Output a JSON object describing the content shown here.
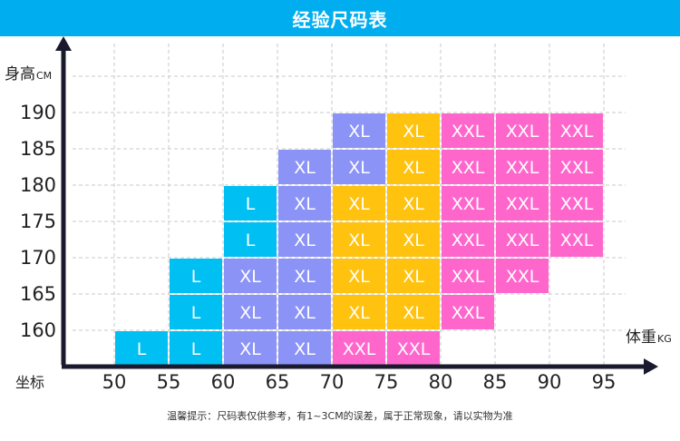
{
  "title": "经验尺码表",
  "footnote": "温馨提示：尺码表仅供参考，有1~3CM的误差，属于正常现象，请以实物为准",
  "chart_data": {
    "type": "heatmap",
    "title": "经验尺码表",
    "ylabel": "身高",
    "ylabel_unit": "CM",
    "xlabel": "体重",
    "xlabel_unit": "KG",
    "origin_label": "坐标",
    "x_ticks": [
      50,
      55,
      60,
      65,
      70,
      75,
      80,
      85,
      90,
      95
    ],
    "y_ticks": [
      160,
      165,
      170,
      175,
      180,
      185,
      190
    ],
    "xlim": [
      50,
      95
    ],
    "ylim": [
      155,
      190
    ],
    "grid": true,
    "colors": {
      "L": "#00bff3",
      "XL": "#8b93f7",
      "XL_alt": "#ffc20e",
      "XXL": "#ff66cc",
      "axis": "#1a1a2e",
      "grid": "#c8c8c8"
    },
    "cells": [
      {
        "height": 190,
        "weight_from": 70,
        "weight_to": 75,
        "size": "XL",
        "color": "#8b93f7"
      },
      {
        "height": 190,
        "weight_from": 75,
        "weight_to": 80,
        "size": "XL",
        "color": "#ffc20e"
      },
      {
        "height": 190,
        "weight_from": 80,
        "weight_to": 85,
        "size": "XXL",
        "color": "#ff66cc"
      },
      {
        "height": 190,
        "weight_from": 85,
        "weight_to": 90,
        "size": "XXL",
        "color": "#ff66cc"
      },
      {
        "height": 190,
        "weight_from": 90,
        "weight_to": 95,
        "size": "XXL",
        "color": "#ff66cc"
      },
      {
        "height": 185,
        "weight_from": 65,
        "weight_to": 70,
        "size": "XL",
        "color": "#8b93f7"
      },
      {
        "height": 185,
        "weight_from": 70,
        "weight_to": 75,
        "size": "XL",
        "color": "#8b93f7"
      },
      {
        "height": 185,
        "weight_from": 75,
        "weight_to": 80,
        "size": "XL",
        "color": "#ffc20e"
      },
      {
        "height": 185,
        "weight_from": 80,
        "weight_to": 85,
        "size": "XXL",
        "color": "#ff66cc"
      },
      {
        "height": 185,
        "weight_from": 85,
        "weight_to": 90,
        "size": "XXL",
        "color": "#ff66cc"
      },
      {
        "height": 185,
        "weight_from": 90,
        "weight_to": 95,
        "size": "XXL",
        "color": "#ff66cc"
      },
      {
        "height": 180,
        "weight_from": 60,
        "weight_to": 65,
        "size": "L",
        "color": "#00bff3"
      },
      {
        "height": 180,
        "weight_from": 65,
        "weight_to": 70,
        "size": "XL",
        "color": "#8b93f7"
      },
      {
        "height": 180,
        "weight_from": 70,
        "weight_to": 75,
        "size": "XL",
        "color": "#ffc20e"
      },
      {
        "height": 180,
        "weight_from": 75,
        "weight_to": 80,
        "size": "XL",
        "color": "#ffc20e"
      },
      {
        "height": 180,
        "weight_from": 80,
        "weight_to": 85,
        "size": "XXL",
        "color": "#ff66cc"
      },
      {
        "height": 180,
        "weight_from": 85,
        "weight_to": 90,
        "size": "XXL",
        "color": "#ff66cc"
      },
      {
        "height": 180,
        "weight_from": 90,
        "weight_to": 95,
        "size": "XXL",
        "color": "#ff66cc"
      },
      {
        "height": 175,
        "weight_from": 60,
        "weight_to": 65,
        "size": "L",
        "color": "#00bff3"
      },
      {
        "height": 175,
        "weight_from": 65,
        "weight_to": 70,
        "size": "XL",
        "color": "#8b93f7"
      },
      {
        "height": 175,
        "weight_from": 70,
        "weight_to": 75,
        "size": "XL",
        "color": "#ffc20e"
      },
      {
        "height": 175,
        "weight_from": 75,
        "weight_to": 80,
        "size": "XL",
        "color": "#ffc20e"
      },
      {
        "height": 175,
        "weight_from": 80,
        "weight_to": 85,
        "size": "XXL",
        "color": "#ff66cc"
      },
      {
        "height": 175,
        "weight_from": 85,
        "weight_to": 90,
        "size": "XXL",
        "color": "#ff66cc"
      },
      {
        "height": 175,
        "weight_from": 90,
        "weight_to": 95,
        "size": "XXL",
        "color": "#ff66cc"
      },
      {
        "height": 170,
        "weight_from": 55,
        "weight_to": 60,
        "size": "L",
        "color": "#00bff3"
      },
      {
        "height": 170,
        "weight_from": 60,
        "weight_to": 65,
        "size": "XL",
        "color": "#8b93f7"
      },
      {
        "height": 170,
        "weight_from": 65,
        "weight_to": 70,
        "size": "XL",
        "color": "#8b93f7"
      },
      {
        "height": 170,
        "weight_from": 70,
        "weight_to": 75,
        "size": "XL",
        "color": "#ffc20e"
      },
      {
        "height": 170,
        "weight_from": 75,
        "weight_to": 80,
        "size": "XL",
        "color": "#ffc20e"
      },
      {
        "height": 170,
        "weight_from": 80,
        "weight_to": 85,
        "size": "XXL",
        "color": "#ff66cc"
      },
      {
        "height": 170,
        "weight_from": 85,
        "weight_to": 90,
        "size": "XXL",
        "color": "#ff66cc"
      },
      {
        "height": 165,
        "weight_from": 55,
        "weight_to": 60,
        "size": "L",
        "color": "#00bff3"
      },
      {
        "height": 165,
        "weight_from": 60,
        "weight_to": 65,
        "size": "XL",
        "color": "#8b93f7"
      },
      {
        "height": 165,
        "weight_from": 65,
        "weight_to": 70,
        "size": "XL",
        "color": "#8b93f7"
      },
      {
        "height": 165,
        "weight_from": 70,
        "weight_to": 75,
        "size": "XL",
        "color": "#ffc20e"
      },
      {
        "height": 165,
        "weight_from": 75,
        "weight_to": 80,
        "size": "XL",
        "color": "#ffc20e"
      },
      {
        "height": 165,
        "weight_from": 80,
        "weight_to": 85,
        "size": "XXL",
        "color": "#ff66cc"
      },
      {
        "height": 160,
        "weight_from": 50,
        "weight_to": 55,
        "size": "L",
        "color": "#00bff3"
      },
      {
        "height": 160,
        "weight_from": 55,
        "weight_to": 60,
        "size": "L",
        "color": "#00bff3"
      },
      {
        "height": 160,
        "weight_from": 60,
        "weight_to": 65,
        "size": "XL",
        "color": "#8b93f7"
      },
      {
        "height": 160,
        "weight_from": 65,
        "weight_to": 70,
        "size": "XL",
        "color": "#8b93f7"
      },
      {
        "height": 160,
        "weight_from": 70,
        "weight_to": 75,
        "size": "XXL",
        "color": "#ff66cc"
      },
      {
        "height": 160,
        "weight_from": 75,
        "weight_to": 80,
        "size": "XXL",
        "color": "#ff66cc"
      }
    ]
  }
}
